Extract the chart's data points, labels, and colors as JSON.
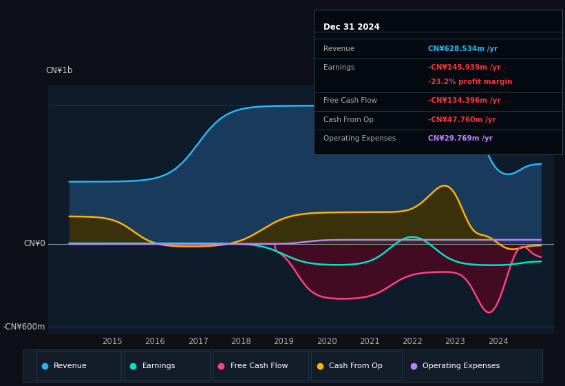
{
  "bg_color": "#0d1117",
  "plot_bg_color": "#0d1b2a",
  "ylabel": "CN¥1b",
  "ylabel_bottom": "-CN¥600m",
  "ylabel_zero": "CN¥0",
  "ylim": [
    -650,
    1150
  ],
  "xlim": [
    2013.5,
    2025.3
  ],
  "xticks": [
    2015,
    2016,
    2017,
    2018,
    2019,
    2020,
    2021,
    2022,
    2023,
    2024
  ],
  "colors": {
    "revenue": "#29b6f6",
    "earnings": "#00e5c8",
    "free_cash_flow": "#ff4081",
    "cash_from_op": "#ffb300",
    "operating_expenses": "#bf7fff",
    "revenue_fill": "#1a3a5c",
    "cfo_fill_pos": "#3d3000",
    "cfo_fill_neg": "#2a1a00",
    "fcf_fill_neg": "#4a0a20",
    "fcf_fill_pos": "#200510"
  },
  "info_box": {
    "title": "Dec 31 2024",
    "rows": [
      {
        "label": "Revenue",
        "value": "CN¥628.534m /yr",
        "value_color": "#29b6f6"
      },
      {
        "label": "Earnings",
        "value": "-CN¥145.939m /yr",
        "value_color": "#ff3333"
      },
      {
        "label": "",
        "value": "-23.2% profit margin",
        "value_color": "#ff3333"
      },
      {
        "label": "Free Cash Flow",
        "value": "-CN¥134.396m /yr",
        "value_color": "#ff3333"
      },
      {
        "label": "Cash From Op",
        "value": "-CN¥47.760m /yr",
        "value_color": "#ff3333"
      },
      {
        "label": "Operating Expenses",
        "value": "CN¥29.769m /yr",
        "value_color": "#bf7fff"
      }
    ]
  },
  "legend": [
    {
      "label": "Revenue",
      "color": "#29b6f6"
    },
    {
      "label": "Earnings",
      "color": "#00e5c8"
    },
    {
      "label": "Free Cash Flow",
      "color": "#ff4081"
    },
    {
      "label": "Cash From Op",
      "color": "#ffb300"
    },
    {
      "label": "Operating Expenses",
      "color": "#bf7fff"
    }
  ]
}
